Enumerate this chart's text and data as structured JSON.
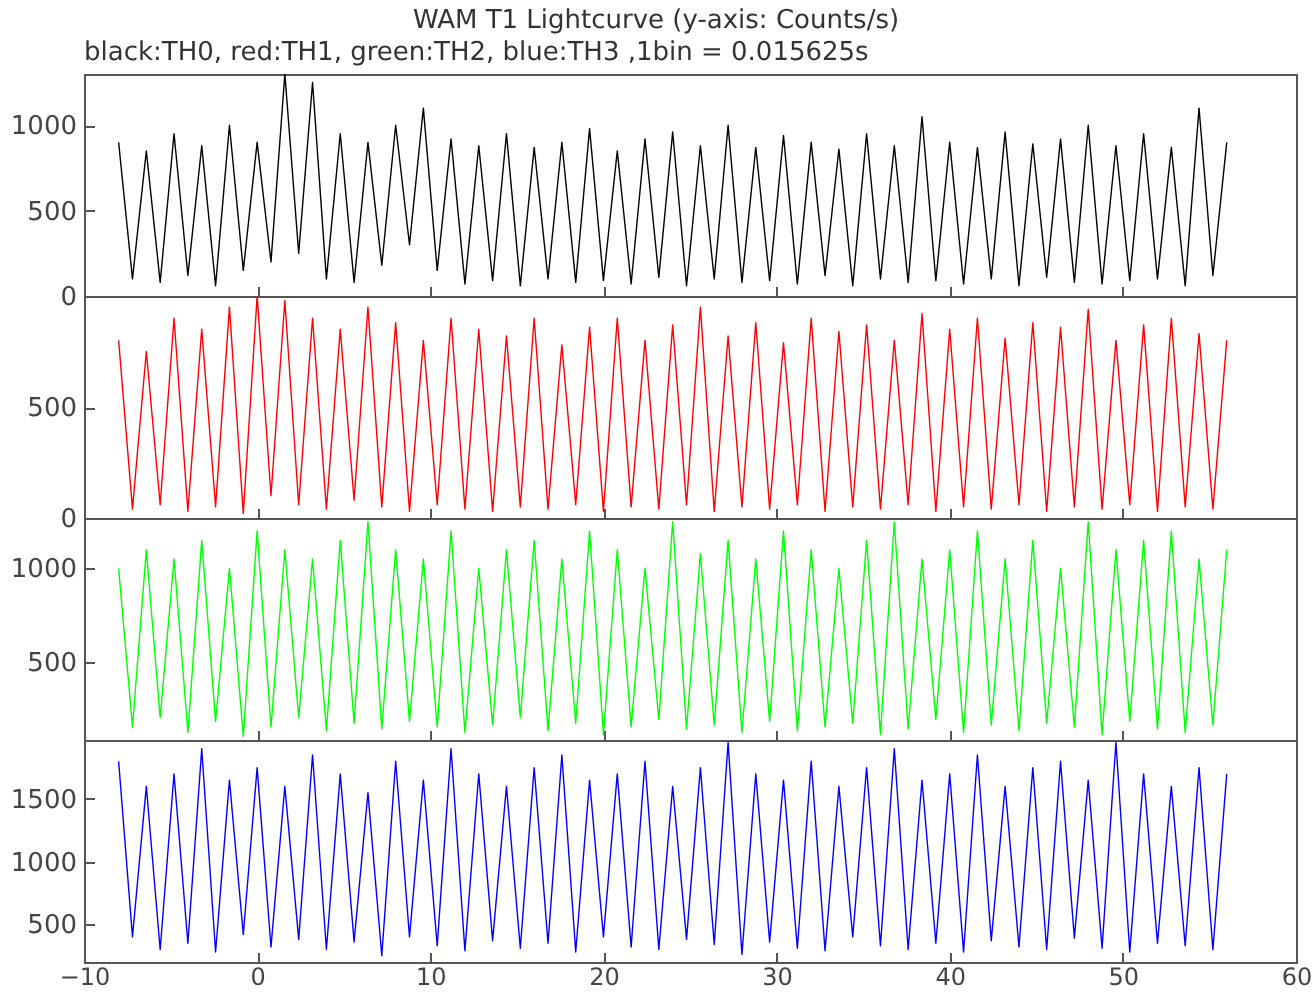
{
  "chart_data": [
    {
      "type": "line",
      "title": "WAM T1 Lightcurve (y-axis: Counts/s)",
      "subtitle": "black:TH0, red:TH1, green:TH2, blue:TH3 ,1bin = 0.015625s",
      "color": "#000000",
      "xlim": [
        -10,
        60
      ],
      "xticks": [
        -10,
        0,
        10,
        20,
        30,
        40,
        50,
        60
      ],
      "ylim": [
        0,
        1300
      ],
      "yticks": [
        0,
        500,
        1000
      ],
      "tick_labels": "y",
      "x": [
        -8,
        -7.2,
        -6.4,
        -5.6,
        -4.8,
        -4,
        -3.2,
        -2.4,
        -1.6,
        -0.8,
        0,
        0.8,
        1.6,
        2.4,
        3.2,
        4,
        4.8,
        5.6,
        6.4,
        7.2,
        8,
        8.8,
        9.6,
        10.4,
        11.2,
        12,
        12.8,
        13.6,
        14.4,
        15.2,
        16,
        16.8,
        17.6,
        18.4,
        19.2,
        20,
        20.8,
        21.6,
        22.4,
        23.2,
        24,
        24.8,
        25.6,
        26.4,
        27.2,
        28,
        28.8,
        29.6,
        30.4,
        31.2,
        32,
        32.8,
        33.6,
        34.4,
        35.2,
        36,
        36.8,
        37.6,
        38.4,
        39.2,
        40,
        40.8,
        41.6,
        42.4,
        43.2,
        44,
        44.8,
        45.6,
        46.4,
        47.2,
        48,
        48.8,
        49.6,
        50.4,
        51.2,
        52,
        52.8,
        53.6,
        54.4,
        55.2,
        56
      ],
      "values": [
        900,
        100,
        850,
        80,
        950,
        120,
        880,
        60,
        1000,
        150,
        900,
        200,
        1300,
        250,
        1250,
        100,
        950,
        80,
        900,
        180,
        1000,
        300,
        1100,
        150,
        920,
        70,
        880,
        90,
        950,
        60,
        870,
        100,
        900,
        80,
        980,
        90,
        850,
        70,
        920,
        110,
        960,
        60,
        880,
        100,
        1000,
        80,
        870,
        90,
        940,
        70,
        900,
        120,
        860,
        60,
        950,
        100,
        880,
        80,
        1050,
        90,
        900,
        70,
        870,
        100,
        960,
        60,
        890,
        110,
        920,
        80,
        1000,
        70,
        880,
        90,
        950,
        100,
        870,
        60,
        1100,
        120,
        900
      ]
    },
    {
      "type": "line",
      "color": "#ff0000",
      "xlim": [
        -10,
        60
      ],
      "xticks": [
        -10,
        0,
        10,
        20,
        30,
        40,
        50,
        60
      ],
      "ylim": [
        0,
        1000
      ],
      "yticks": [
        0,
        500
      ],
      "tick_labels": "y",
      "x": [
        -8,
        -7.2,
        -6.4,
        -5.6,
        -4.8,
        -4,
        -3.2,
        -2.4,
        -1.6,
        -0.8,
        0,
        0.8,
        1.6,
        2.4,
        3.2,
        4,
        4.8,
        5.6,
        6.4,
        7.2,
        8,
        8.8,
        9.6,
        10.4,
        11.2,
        12,
        12.8,
        13.6,
        14.4,
        15.2,
        16,
        16.8,
        17.6,
        18.4,
        19.2,
        20,
        20.8,
        21.6,
        22.4,
        23.2,
        24,
        24.8,
        25.6,
        26.4,
        27.2,
        28,
        28.8,
        29.6,
        30.4,
        31.2,
        32,
        32.8,
        33.6,
        34.4,
        35.2,
        36,
        36.8,
        37.6,
        38.4,
        39.2,
        40,
        40.8,
        41.6,
        42.4,
        43.2,
        44,
        44.8,
        45.6,
        46.4,
        47.2,
        48,
        48.8,
        49.6,
        50.4,
        51.2,
        52,
        52.8,
        53.6,
        54.4,
        55.2,
        56
      ],
      "values": [
        800,
        40,
        750,
        60,
        900,
        30,
        850,
        50,
        950,
        20,
        1000,
        100,
        980,
        60,
        900,
        40,
        850,
        80,
        950,
        50,
        880,
        30,
        800,
        60,
        900,
        40,
        850,
        30,
        820,
        50,
        900,
        40,
        780,
        60,
        860,
        30,
        900,
        50,
        800,
        40,
        870,
        60,
        950,
        30,
        820,
        50,
        880,
        40,
        790,
        60,
        900,
        30,
        840,
        50,
        870,
        40,
        800,
        60,
        920,
        30,
        850,
        50,
        900,
        40,
        810,
        60,
        880,
        30,
        860,
        50,
        940,
        40,
        800,
        60,
        870,
        30,
        900,
        50,
        830,
        40,
        800
      ]
    },
    {
      "type": "line",
      "color": "#00ff00",
      "xlim": [
        -10,
        60
      ],
      "xticks": [
        -10,
        0,
        10,
        20,
        30,
        40,
        50,
        60
      ],
      "ylim": [
        80,
        1270
      ],
      "yticks": [
        500,
        1000
      ],
      "tick_labels": "y",
      "x": [
        -8,
        -7.2,
        -6.4,
        -5.6,
        -4.8,
        -4,
        -3.2,
        -2.4,
        -1.6,
        -0.8,
        0,
        0.8,
        1.6,
        2.4,
        3.2,
        4,
        4.8,
        5.6,
        6.4,
        7.2,
        8,
        8.8,
        9.6,
        10.4,
        11.2,
        12,
        12.8,
        13.6,
        14.4,
        15.2,
        16,
        16.8,
        17.6,
        18.4,
        19.2,
        20,
        20.8,
        21.6,
        22.4,
        23.2,
        24,
        24.8,
        25.6,
        26.4,
        27.2,
        28,
        28.8,
        29.6,
        30.4,
        31.2,
        32,
        32.8,
        33.6,
        34.4,
        35.2,
        36,
        36.8,
        37.6,
        38.4,
        39.2,
        40,
        40.8,
        41.6,
        42.4,
        43.2,
        44,
        44.8,
        45.6,
        46.4,
        47.2,
        48,
        48.8,
        49.6,
        50.4,
        51.2,
        52,
        52.8,
        53.6,
        54.4,
        55.2,
        56
      ],
      "values": [
        1000,
        150,
        1100,
        200,
        1050,
        120,
        1150,
        180,
        1000,
        100,
        1200,
        150,
        1100,
        200,
        1050,
        130,
        1150,
        170,
        1250,
        140,
        1100,
        180,
        1050,
        150,
        1200,
        120,
        1000,
        160,
        1100,
        200,
        1150,
        130,
        1050,
        170,
        1200,
        110,
        1100,
        150,
        1000,
        190,
        1250,
        140,
        1080,
        160,
        1150,
        120,
        1050,
        180,
        1200,
        130,
        1100,
        150,
        1000,
        170,
        1150,
        110,
        1250,
        140,
        1050,
        190,
        1100,
        120,
        1200,
        160,
        1050,
        130,
        1150,
        170,
        1000,
        150,
        1250,
        110,
        1100,
        180,
        1150,
        140,
        1200,
        120,
        1050,
        160,
        1100
      ]
    },
    {
      "type": "line",
      "color": "#0000ff",
      "xlim": [
        -10,
        60
      ],
      "xticks": [
        -10,
        0,
        10,
        20,
        30,
        40,
        50,
        60
      ],
      "ylim": [
        200,
        1970
      ],
      "yticks": [
        500,
        1000,
        1500
      ],
      "x": [
        -8,
        -7.2,
        -6.4,
        -5.6,
        -4.8,
        -4,
        -3.2,
        -2.4,
        -1.6,
        -0.8,
        0,
        0.8,
        1.6,
        2.4,
        3.2,
        4,
        4.8,
        5.6,
        6.4,
        7.2,
        8,
        8.8,
        9.6,
        10.4,
        11.2,
        12,
        12.8,
        13.6,
        14.4,
        15.2,
        16,
        16.8,
        17.6,
        18.4,
        19.2,
        20,
        20.8,
        21.6,
        22.4,
        23.2,
        24,
        24.8,
        25.6,
        26.4,
        27.2,
        28,
        28.8,
        29.6,
        30.4,
        31.2,
        32,
        32.8,
        33.6,
        34.4,
        35.2,
        36,
        36.8,
        37.6,
        38.4,
        39.2,
        40,
        40.8,
        41.6,
        42.4,
        43.2,
        44,
        44.8,
        45.6,
        46.4,
        47.2,
        48,
        48.8,
        49.6,
        50.4,
        51.2,
        52,
        52.8,
        53.6,
        54.4,
        55.2,
        56
      ],
      "values": [
        1800,
        400,
        1600,
        300,
        1700,
        350,
        1900,
        280,
        1650,
        420,
        1750,
        320,
        1600,
        380,
        1850,
        300,
        1700,
        360,
        1550,
        250,
        1800,
        400,
        1650,
        330,
        1900,
        290,
        1700,
        370,
        1600,
        310,
        1750,
        350,
        1850,
        280,
        1650,
        400,
        1700,
        320,
        1800,
        300,
        1600,
        380,
        1750,
        340,
        1950,
        260,
        1700,
        360,
        1650,
        310,
        1800,
        290,
        1600,
        400,
        1750,
        330,
        1900,
        300,
        1650,
        350,
        1700,
        280,
        1850,
        370,
        1600,
        320,
        1750,
        300,
        1800,
        390,
        1650,
        310,
        1950,
        280,
        1700,
        350,
        1600,
        330,
        1750,
        300,
        1700
      ]
    }
  ]
}
